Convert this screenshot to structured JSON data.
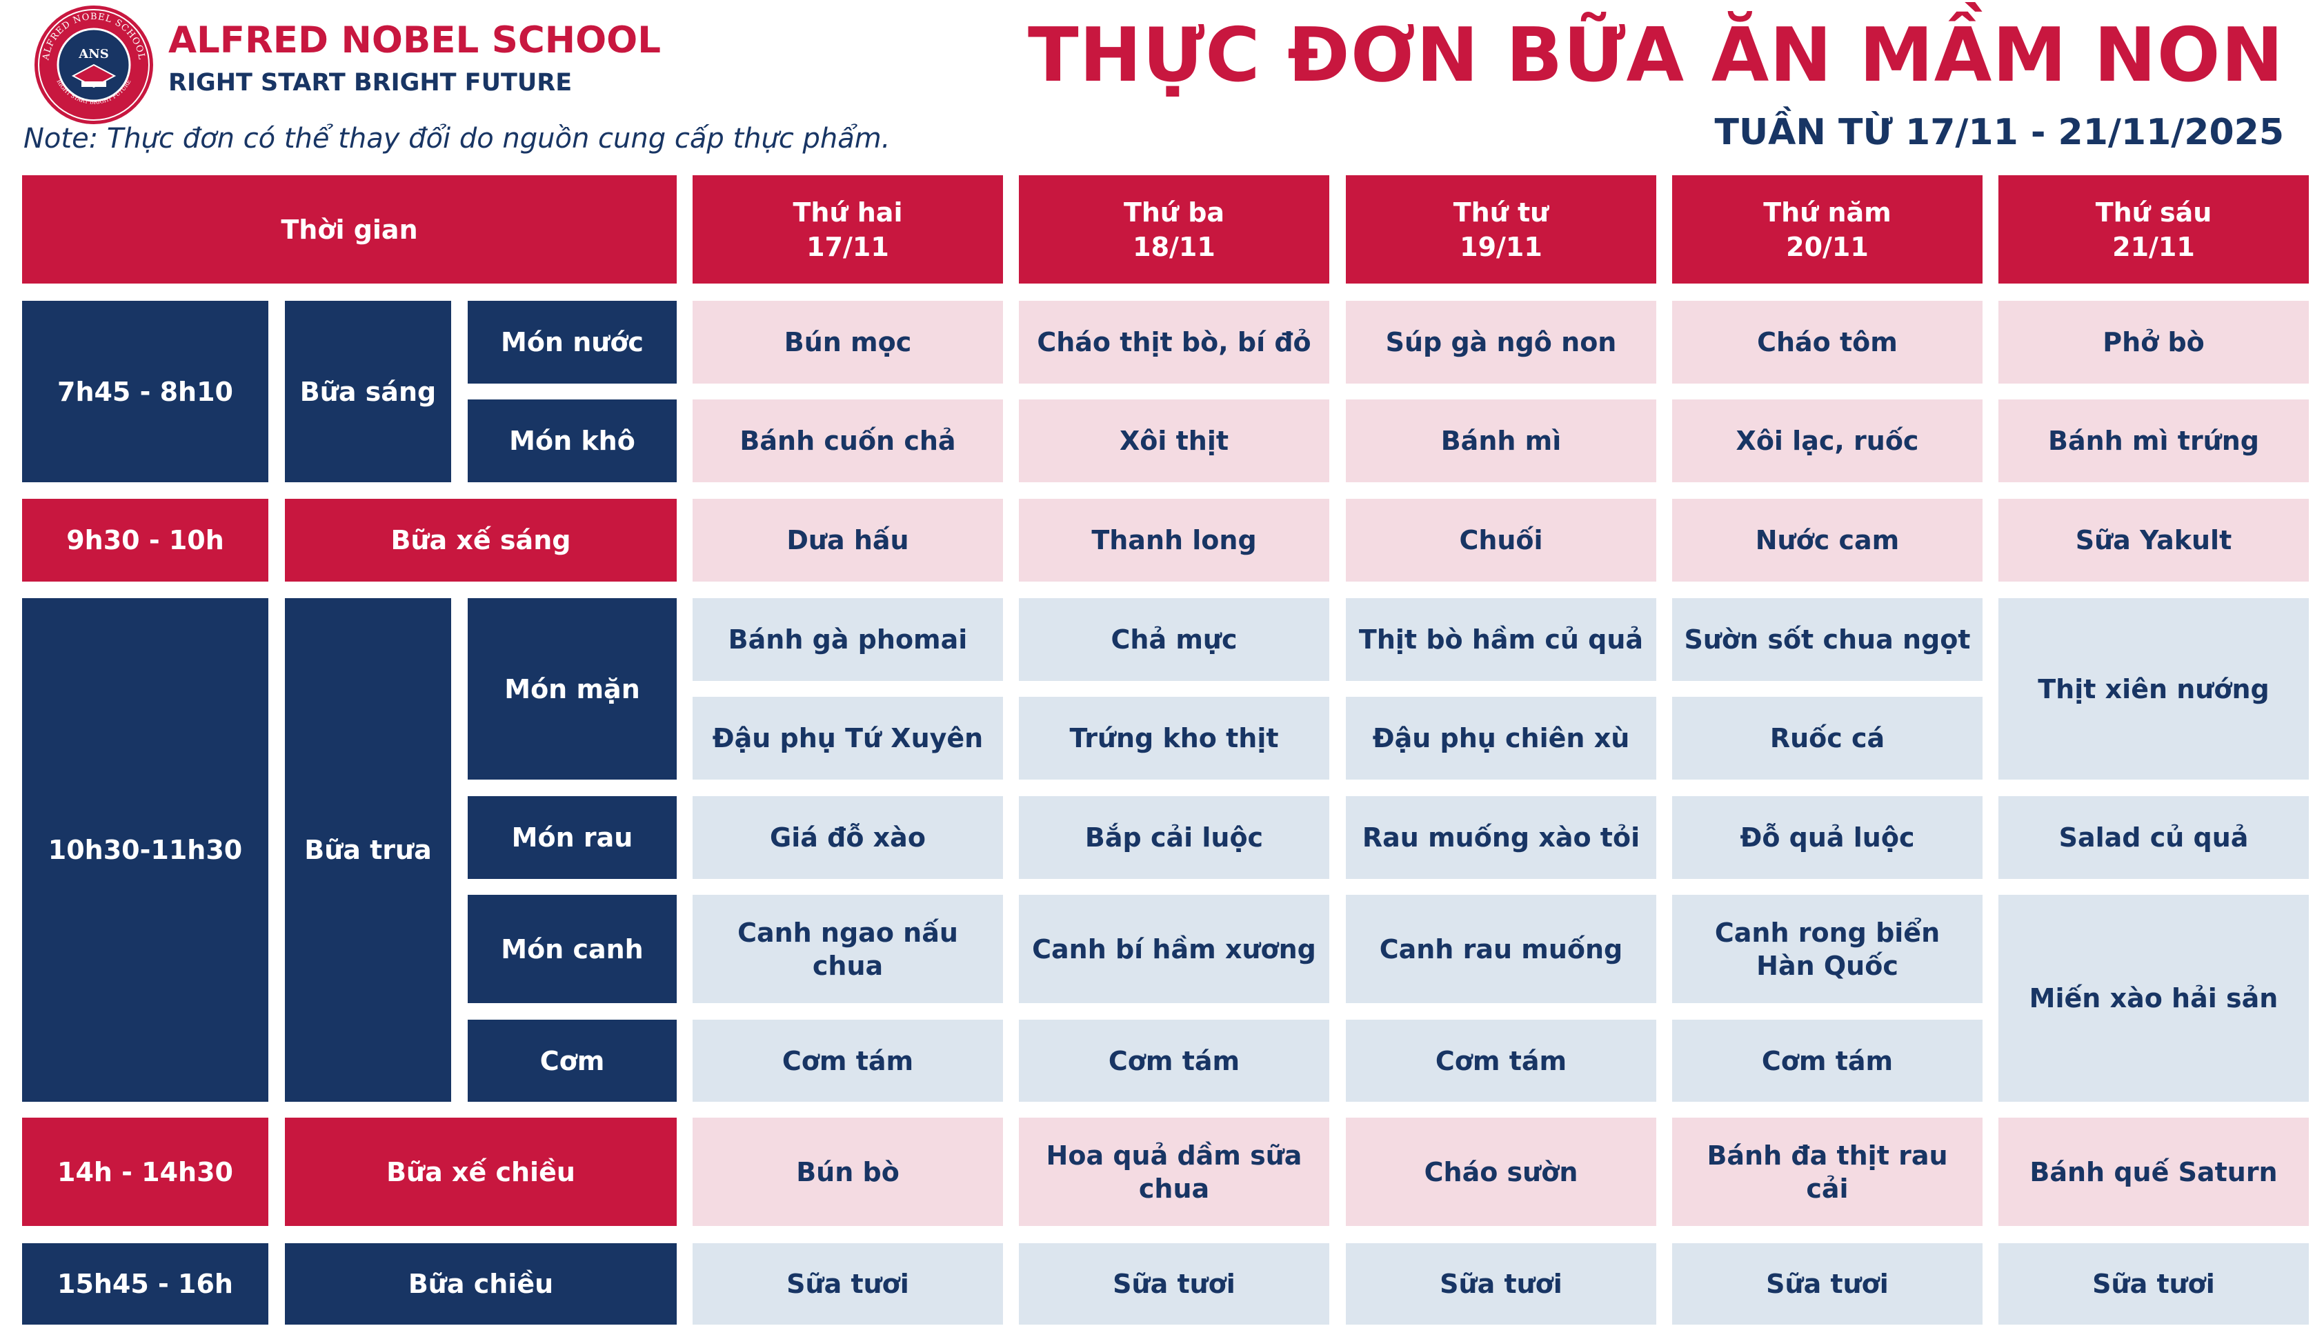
{
  "school": {
    "name": "ALFRED NOBEL SCHOOL",
    "slogan": "RIGHT START  BRIGHT FUTURE",
    "logo_ring_text": "ALFRED NOBEL SCHOOL",
    "logo_bottom_text": "RIGHT START BRIGHT FUTURE",
    "logo_monogram": "ANS"
  },
  "note": "Note: Thực đơn có thể thay đổi do nguồn cung cấp thực phẩm.",
  "title": "THỰC ĐƠN BỮA ĂN MẦM NON",
  "week": "TUẦN TỪ 17/11 - 21/11/2025",
  "colors": {
    "red": "#c8173f",
    "navy": "#183564",
    "pink": "#f4dbe2",
    "light_blue": "#dce5ee"
  },
  "header": {
    "time": "Thời gian",
    "days": [
      {
        "name": "Thứ hai",
        "date": "17/11"
      },
      {
        "name": "Thứ ba",
        "date": "18/11"
      },
      {
        "name": "Thứ tư",
        "date": "19/11"
      },
      {
        "name": "Thứ năm",
        "date": "20/11"
      },
      {
        "name": "Thứ sáu",
        "date": "21/11"
      }
    ]
  },
  "breakfast": {
    "time": "7h45 - 8h10",
    "meal": "Bữa sáng",
    "rows": [
      {
        "label": "Món nước",
        "items": [
          "Bún mọc",
          "Cháo thịt bò, bí đỏ",
          "Súp gà ngô non",
          "Cháo tôm",
          "Phở bò"
        ]
      },
      {
        "label": "Món khô",
        "items": [
          "Bánh cuốn chả",
          "Xôi thịt",
          "Bánh mì",
          "Xôi lạc, ruốc",
          "Bánh mì trứng"
        ]
      }
    ]
  },
  "morning_snack": {
    "time": "9h30 - 10h",
    "meal": "Bữa xế sáng",
    "items": [
      "Dưa hấu",
      "Thanh long",
      "Chuối",
      "Nước cam",
      "Sữa Yakult"
    ]
  },
  "lunch": {
    "time": "10h30-11h30",
    "meal": "Bữa trưa",
    "man_label": "Món mặn",
    "man_row1": [
      "Bánh gà phomai",
      "Chả mực",
      "Thịt bò hầm củ quả",
      "Sườn sốt chua ngọt"
    ],
    "man_row2": [
      "Đậu phụ Tứ Xuyên",
      "Trứng kho thịt",
      "Đậu phụ chiên xù",
      "Ruốc cá"
    ],
    "man_fri": "Thịt xiên nướng",
    "rau_label": "Món rau",
    "rau": [
      "Giá đỗ xào",
      "Bắp cải luộc",
      "Rau muống xào tỏi",
      "Đỗ quả luộc",
      "Salad củ quả"
    ],
    "canh_label": "Món canh",
    "canh": [
      "Canh ngao nấu chua",
      "Canh bí hầm xương",
      "Canh rau muống",
      "Canh rong biển Hàn Quốc"
    ],
    "com_label": "Cơm",
    "com": [
      "Cơm tám",
      "Cơm tám",
      "Cơm tám",
      "Cơm tám"
    ],
    "canh_com_fri": "Miến xào hải sản"
  },
  "afternoon_snack": {
    "time": "14h - 14h30",
    "meal": "Bữa xế chiều",
    "items": [
      "Bún bò",
      "Hoa quả dầm sữa chua",
      "Cháo sườn",
      "Bánh đa thịt rau cải",
      "Bánh quế Saturn"
    ]
  },
  "afternoon": {
    "time": "15h45 - 16h",
    "meal": "Bữa chiều",
    "items": [
      "Sữa tươi",
      "Sữa tươi",
      "Sữa tươi",
      "Sữa tươi",
      "Sữa tươi"
    ]
  }
}
